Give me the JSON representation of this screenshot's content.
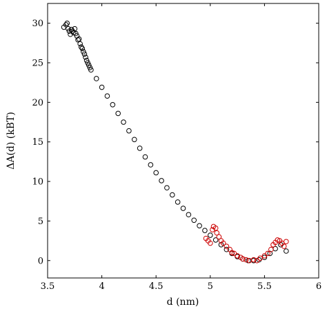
{
  "chart_data": {
    "type": "scatter",
    "title": "",
    "xlabel": "d (nm)",
    "ylabel": "ΔA(d) (kBT)",
    "xlim": [
      3.5,
      6
    ],
    "ylim": [
      -2.2,
      32.5
    ],
    "xticks": [
      3.5,
      4,
      4.5,
      5,
      5.5,
      6
    ],
    "xtick_labels": [
      "3.5",
      "4",
      "4.5",
      "5",
      "5.5",
      "6"
    ],
    "yticks": [
      0,
      5,
      10,
      15,
      20,
      25,
      30
    ],
    "ytick_labels": [
      "0",
      "5",
      "10",
      "15",
      "20",
      "25",
      "30"
    ],
    "grid": false,
    "marker": "circle-open",
    "series": [
      {
        "color": "#000000",
        "points": [
          [
            3.65,
            29.5
          ],
          [
            3.67,
            29.8
          ],
          [
            3.68,
            30.0
          ],
          [
            3.69,
            29.3
          ],
          [
            3.7,
            29.0
          ],
          [
            3.71,
            28.6
          ],
          [
            3.72,
            29.2
          ],
          [
            3.73,
            29.0
          ],
          [
            3.74,
            28.8
          ],
          [
            3.75,
            29.3
          ],
          [
            3.76,
            28.7
          ],
          [
            3.77,
            28.4
          ],
          [
            3.78,
            27.9
          ],
          [
            3.79,
            28.0
          ],
          [
            3.8,
            27.4
          ],
          [
            3.81,
            27.0
          ],
          [
            3.82,
            26.8
          ],
          [
            3.83,
            26.4
          ],
          [
            3.84,
            26.1
          ],
          [
            3.85,
            25.7
          ],
          [
            3.86,
            25.3
          ],
          [
            3.87,
            25.0
          ],
          [
            3.88,
            24.7
          ],
          [
            3.89,
            24.4
          ],
          [
            3.9,
            24.1
          ],
          [
            3.95,
            23.0
          ],
          [
            4.0,
            21.9
          ],
          [
            4.05,
            20.8
          ],
          [
            4.1,
            19.7
          ],
          [
            4.15,
            18.6
          ],
          [
            4.2,
            17.5
          ],
          [
            4.25,
            16.4
          ],
          [
            4.3,
            15.3
          ],
          [
            4.35,
            14.2
          ],
          [
            4.4,
            13.1
          ],
          [
            4.45,
            12.1
          ],
          [
            4.5,
            11.1
          ],
          [
            4.55,
            10.1
          ],
          [
            4.6,
            9.2
          ],
          [
            4.65,
            8.3
          ],
          [
            4.7,
            7.4
          ],
          [
            4.75,
            6.6
          ],
          [
            4.8,
            5.8
          ],
          [
            4.85,
            5.1
          ],
          [
            4.9,
            4.4
          ],
          [
            4.95,
            3.8
          ],
          [
            5.0,
            3.2
          ],
          [
            5.05,
            2.6
          ],
          [
            5.1,
            2.0
          ],
          [
            5.15,
            1.4
          ],
          [
            5.2,
            0.9
          ],
          [
            5.25,
            0.5
          ],
          [
            5.3,
            0.2
          ],
          [
            5.35,
            0.0
          ],
          [
            5.4,
            0.0
          ],
          [
            5.45,
            0.1
          ],
          [
            5.5,
            0.4
          ],
          [
            5.55,
            0.9
          ],
          [
            5.6,
            1.5
          ],
          [
            5.65,
            2.0
          ],
          [
            5.7,
            1.2
          ]
        ]
      },
      {
        "color": "#cc0000",
        "points": [
          [
            4.96,
            2.8
          ],
          [
            4.98,
            2.5
          ],
          [
            5.0,
            2.2
          ],
          [
            5.02,
            3.9
          ],
          [
            5.03,
            4.3
          ],
          [
            5.05,
            4.1
          ],
          [
            5.06,
            3.5
          ],
          [
            5.08,
            3.0
          ],
          [
            5.1,
            2.5
          ],
          [
            5.12,
            2.2
          ],
          [
            5.15,
            1.8
          ],
          [
            5.18,
            1.4
          ],
          [
            5.2,
            1.0
          ],
          [
            5.22,
            0.9
          ],
          [
            5.25,
            0.6
          ],
          [
            5.28,
            0.4
          ],
          [
            5.3,
            0.2
          ],
          [
            5.33,
            0.1
          ],
          [
            5.36,
            0.0
          ],
          [
            5.4,
            0.1
          ],
          [
            5.43,
            0.0
          ],
          [
            5.46,
            0.3
          ],
          [
            5.5,
            0.6
          ],
          [
            5.53,
            0.9
          ],
          [
            5.56,
            1.4
          ],
          [
            5.58,
            2.0
          ],
          [
            5.6,
            2.3
          ],
          [
            5.62,
            2.6
          ],
          [
            5.64,
            2.5
          ],
          [
            5.66,
            2.2
          ],
          [
            5.68,
            1.8
          ],
          [
            5.7,
            2.4
          ]
        ]
      }
    ]
  }
}
